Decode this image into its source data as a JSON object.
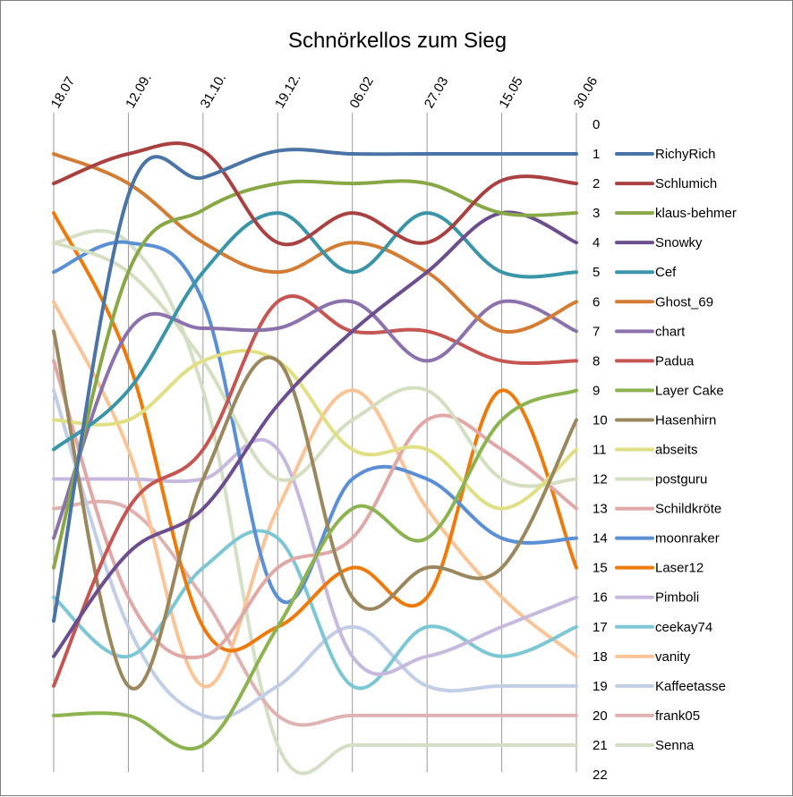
{
  "chart_data": {
    "type": "line",
    "title": "Schnörkellos zum Sieg",
    "xlabel": "",
    "ylabel": "",
    "categories": [
      "18.07",
      "12.09.",
      "31.10.",
      "19.12.",
      "06.02",
      "27.03",
      "15.05",
      "30.06"
    ],
    "y_ticks": [
      "0",
      "1",
      "2",
      "3",
      "4",
      "5",
      "6",
      "7",
      "8",
      "9",
      "10",
      "11",
      "12",
      "13",
      "14",
      "15",
      "16",
      "17",
      "18",
      "19",
      "20",
      "21",
      "22"
    ],
    "ylim": [
      0,
      22
    ],
    "y_inverted": true,
    "grid": "vertical",
    "legend_position": "right",
    "series": [
      {
        "name": "RichyRich",
        "color": "#4a73a6",
        "values": [
          16.8,
          2.4,
          1.8,
          0.9,
          1,
          1,
          1,
          1
        ]
      },
      {
        "name": "Schlumich",
        "color": "#a8413f",
        "values": [
          2,
          1,
          0.9,
          4,
          3,
          4,
          1.9,
          2
        ]
      },
      {
        "name": "klaus-behmer",
        "color": "#88a845",
        "values": [
          15,
          5,
          2.9,
          2,
          2,
          2,
          3,
          3
        ]
      },
      {
        "name": "Snowky",
        "color": "#6c4e8e",
        "values": [
          18,
          14.5,
          13,
          9.5,
          7,
          5,
          3,
          4
        ]
      },
      {
        "name": "Cef",
        "color": "#3a95a9",
        "values": [
          11,
          9,
          5,
          3,
          5,
          3,
          5,
          5
        ]
      },
      {
        "name": "Ghost_69",
        "color": "#d27c34",
        "values": [
          1,
          2,
          4,
          5,
          4,
          5,
          7,
          6
        ]
      },
      {
        "name": "chart",
        "color": "#8b72ad",
        "values": [
          14,
          7,
          6.9,
          6.9,
          6,
          8,
          6,
          7
        ]
      },
      {
        "name": "Padua",
        "color": "#c55651",
        "values": [
          19,
          13,
          11,
          6,
          7,
          7,
          8,
          8
        ]
      },
      {
        "name": "Layer Cake",
        "color": "#8cb350",
        "values": [
          20,
          20,
          21,
          17,
          13,
          14,
          10,
          9
        ]
      },
      {
        "name": "Hasenhirn",
        "color": "#9a875e",
        "values": [
          7,
          19,
          12,
          8,
          16,
          15,
          15,
          10
        ]
      },
      {
        "name": "abseits",
        "color": "#e1df84",
        "values": [
          10,
          10,
          8,
          8,
          11,
          11,
          13,
          11
        ]
      },
      {
        "name": "postguru",
        "color": "#d4dec0",
        "values": [
          4,
          5,
          8,
          12,
          10,
          9,
          12,
          12
        ]
      },
      {
        "name": "Schildkröte",
        "color": "#e0a8a6",
        "values": [
          8,
          16,
          18,
          15,
          14,
          10,
          11,
          13
        ]
      },
      {
        "name": "moonraker",
        "color": "#5b8fd5",
        "values": [
          5,
          4,
          6,
          16,
          12,
          12,
          14,
          14
        ]
      },
      {
        "name": "Laser12",
        "color": "#ee7a0c",
        "values": [
          3,
          8,
          17,
          17,
          15,
          16,
          9,
          15
        ]
      },
      {
        "name": "Pimboli",
        "color": "#c6b9dd",
        "values": [
          12,
          12,
          12,
          11,
          18,
          18,
          17,
          16
        ]
      },
      {
        "name": "ceekay74",
        "color": "#7dc7d5",
        "values": [
          16,
          18,
          15,
          14,
          19,
          17,
          18,
          17
        ]
      },
      {
        "name": "vanity",
        "color": "#fbc496",
        "values": [
          6,
          11,
          19,
          13,
          9,
          13,
          16,
          18
        ]
      },
      {
        "name": "Kaffeetasse",
        "color": "#c2cde6",
        "values": [
          9,
          17,
          20,
          19,
          17,
          19,
          19,
          19
        ]
      },
      {
        "name": "frank05",
        "color": "#dfb3b2",
        "values": [
          13,
          13,
          16,
          20,
          20,
          20,
          20,
          20
        ]
      },
      {
        "name": "Senna",
        "color": "#d5dfc5",
        "values": [
          4,
          4,
          9,
          21,
          21,
          21,
          21,
          21
        ]
      }
    ]
  }
}
